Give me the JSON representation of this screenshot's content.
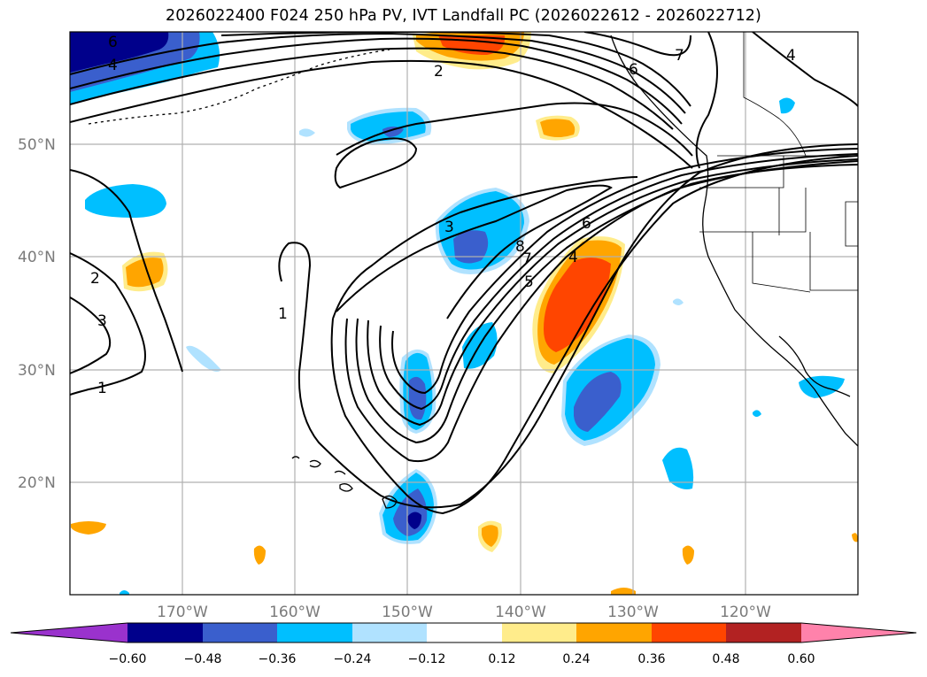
{
  "title": "2026022400 F024 250 hPa PV, IVT Landfall PC (2026022612 - 2026022712)",
  "axes": {
    "lat_labels": [
      "50°N",
      "40°N",
      "30°N",
      "20°N"
    ],
    "lon_labels": [
      "170°W",
      "160°W",
      "150°W",
      "140°W",
      "130°W",
      "120°W"
    ]
  },
  "contour_labels": [
    "6",
    "4",
    "2",
    "6",
    "7",
    "4",
    "3",
    "8",
    "7",
    "6",
    "4",
    "5",
    "2",
    "3",
    "1",
    "1"
  ],
  "colorbar": {
    "tick_labels": [
      "−0.60",
      "−0.48",
      "−0.36",
      "−0.24",
      "−0.12",
      "0.12",
      "0.24",
      "0.36",
      "0.48",
      "0.60"
    ],
    "colors": [
      "#9a32cd",
      "#00008b",
      "#3a5fcd",
      "#00bfff",
      "#b0e2ff",
      "#ffffff",
      "#ffec8b",
      "#ffa500",
      "#ff4500",
      "#b22222",
      "#ff82ab"
    ]
  },
  "colors": {
    "grid": "#b0b0b0",
    "contour": "#000000",
    "coast": "#000000"
  }
}
